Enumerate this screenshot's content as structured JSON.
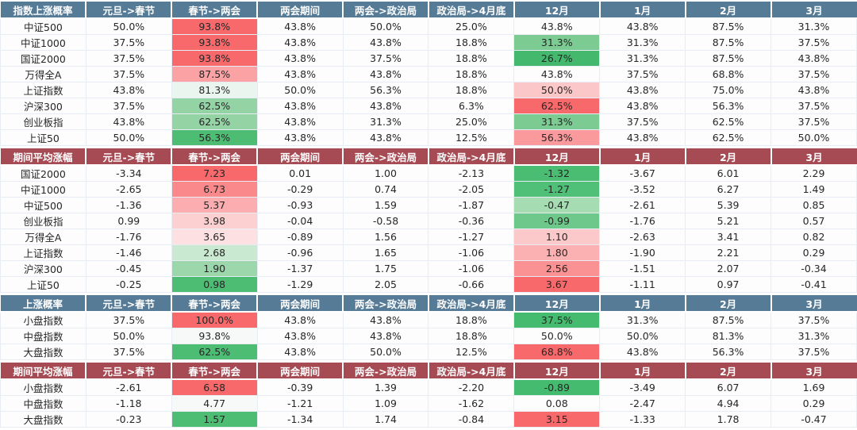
{
  "colors": {
    "header_blue": "#567b97",
    "header_red": "#a64a53",
    "cell_border": "#e7edf2",
    "text": "#262626",
    "red_full": "#f8696b",
    "green_full": "#4dbd74"
  },
  "sections": [
    {
      "title": "指数上涨概率",
      "theme": "blue",
      "columns": [
        "元旦->春节",
        "春节->两会",
        "两会期间",
        "两会->政治局",
        "政治局->4月底",
        "12月",
        "1月",
        "2月",
        "3月"
      ],
      "rows": [
        {
          "label": "中证500",
          "values": [
            "50.0%",
            "93.8%",
            "43.8%",
            "50.0%",
            "25.0%",
            "43.8%",
            "43.8%",
            "87.5%",
            "31.3%"
          ],
          "bg": [
            "",
            "#f8696b",
            "",
            "",
            "",
            "",
            "",
            "",
            ""
          ]
        },
        {
          "label": "中证1000",
          "values": [
            "37.5%",
            "93.8%",
            "43.8%",
            "43.8%",
            "18.8%",
            "31.3%",
            "31.3%",
            "87.5%",
            "37.5%"
          ],
          "bg": [
            "",
            "#f8696b",
            "",
            "",
            "",
            "#7ccb93",
            "",
            "",
            ""
          ]
        },
        {
          "label": "国证2000",
          "values": [
            "37.5%",
            "93.8%",
            "43.8%",
            "37.5%",
            "18.8%",
            "26.7%",
            "31.3%",
            "87.5%",
            "43.8%"
          ],
          "bg": [
            "",
            "#f8696b",
            "",
            "",
            "",
            "#44b96e",
            "",
            "",
            ""
          ]
        },
        {
          "label": "万得全A",
          "values": [
            "37.5%",
            "87.5%",
            "43.8%",
            "43.8%",
            "18.8%",
            "43.8%",
            "37.5%",
            "68.8%",
            "37.5%"
          ],
          "bg": [
            "",
            "#faa2a4",
            "",
            "",
            "",
            "",
            "",
            "",
            ""
          ]
        },
        {
          "label": "上证指数",
          "values": [
            "43.8%",
            "81.3%",
            "50.0%",
            "56.3%",
            "18.8%",
            "50.0%",
            "43.8%",
            "75.0%",
            "43.8%"
          ],
          "bg": [
            "",
            "#e9f5ee",
            "",
            "",
            "",
            "#fbc7c8",
            "",
            "",
            ""
          ]
        },
        {
          "label": "沪深300",
          "values": [
            "37.5%",
            "62.5%",
            "43.8%",
            "43.8%",
            "6.3%",
            "62.5%",
            "43.8%",
            "56.3%",
            "37.5%"
          ],
          "bg": [
            "",
            "#93d3a4",
            "",
            "",
            "",
            "#f8696b",
            "",
            "",
            ""
          ]
        },
        {
          "label": "创业板指",
          "values": [
            "43.8%",
            "62.5%",
            "43.8%",
            "31.3%",
            "25.0%",
            "31.3%",
            "37.5%",
            "62.5%",
            "37.5%"
          ],
          "bg": [
            "",
            "#93d3a4",
            "",
            "",
            "",
            "#7ccb93",
            "",
            "",
            ""
          ]
        },
        {
          "label": "上证50",
          "values": [
            "50.0%",
            "56.3%",
            "43.8%",
            "43.8%",
            "12.5%",
            "56.3%",
            "43.8%",
            "62.5%",
            "50.0%"
          ],
          "bg": [
            "",
            "#4dbd74",
            "",
            "",
            "",
            "#fa9a9d",
            "",
            "",
            ""
          ]
        }
      ]
    },
    {
      "title": "期间平均涨幅",
      "theme": "red",
      "columns": [
        "元旦->春节",
        "春节->两会",
        "两会期间",
        "两会->政治局",
        "政治局->4月底",
        "12月",
        "1月",
        "2月",
        "3月"
      ],
      "rows": [
        {
          "label": "国证2000",
          "values": [
            "-3.34",
            "7.23",
            "0.01",
            "1.00",
            "-2.13",
            "-1.32",
            "-3.67",
            "6.01",
            "2.29"
          ],
          "bg": [
            "",
            "#f8696b",
            "",
            "",
            "",
            "#4abd72",
            "",
            "",
            ""
          ]
        },
        {
          "label": "中证1000",
          "values": [
            "-2.65",
            "6.73",
            "-0.29",
            "0.74",
            "-2.05",
            "-1.27",
            "-3.52",
            "6.27",
            "1.49"
          ],
          "bg": [
            "",
            "#f9898b",
            "",
            "",
            "",
            "#50bf77",
            "",
            "",
            ""
          ]
        },
        {
          "label": "中证500",
          "values": [
            "-1.36",
            "5.37",
            "-0.93",
            "1.59",
            "-1.87",
            "-0.47",
            "-2.61",
            "5.39",
            "0.85"
          ],
          "bg": [
            "",
            "#fbadaf",
            "",
            "",
            "",
            "#a5dcb2",
            "",
            "",
            ""
          ]
        },
        {
          "label": "创业板指",
          "values": [
            "0.99",
            "3.98",
            "-0.04",
            "-0.58",
            "-0.36",
            "-0.99",
            "-1.76",
            "5.21",
            "0.57"
          ],
          "bg": [
            "",
            "#fcd0d1",
            "",
            "",
            "",
            "#6ec88b",
            "",
            "",
            ""
          ]
        },
        {
          "label": "万得全A",
          "values": [
            "-1.76",
            "3.65",
            "-0.89",
            "1.56",
            "-1.27",
            "1.10",
            "-2.63",
            "3.41",
            "0.82"
          ],
          "bg": [
            "",
            "#fde0e1",
            "",
            "",
            "",
            "#fcc9ca",
            "",
            "",
            ""
          ]
        },
        {
          "label": "上证指数",
          "values": [
            "-1.46",
            "2.68",
            "-0.96",
            "1.65",
            "-1.06",
            "1.80",
            "-1.90",
            "2.21",
            "0.29"
          ],
          "bg": [
            "",
            "#c9e9d1",
            "",
            "",
            "",
            "#fbb0b1",
            "",
            "",
            ""
          ]
        },
        {
          "label": "沪深300",
          "values": [
            "-0.45",
            "1.90",
            "-1.37",
            "1.75",
            "-1.06",
            "2.56",
            "-1.51",
            "2.07",
            "-0.34"
          ],
          "bg": [
            "",
            "#9cd7ab",
            "",
            "",
            "",
            "#fa9193",
            "",
            "",
            ""
          ]
        },
        {
          "label": "上证50",
          "values": [
            "-0.25",
            "0.98",
            "-1.29",
            "2.05",
            "-0.66",
            "3.67",
            "-1.11",
            "0.97",
            "-0.41"
          ],
          "bg": [
            "",
            "#4dbd74",
            "",
            "",
            "",
            "#f8696b",
            "",
            "",
            ""
          ]
        }
      ]
    },
    {
      "title": "上涨概率",
      "theme": "blue",
      "columns": [
        "元旦->春节",
        "春节->两会",
        "两会期间",
        "两会->政治局",
        "政治局->4月底",
        "12月",
        "1月",
        "2月",
        "3月"
      ],
      "rows": [
        {
          "label": "小盘指数",
          "values": [
            "37.5%",
            "100.0%",
            "43.8%",
            "43.8%",
            "18.8%",
            "37.5%",
            "31.3%",
            "87.5%",
            "37.5%"
          ],
          "bg": [
            "",
            "#f8696b",
            "",
            "",
            "",
            "#44bb6e",
            "",
            "",
            ""
          ]
        },
        {
          "label": "中盘指数",
          "values": [
            "50.0%",
            "93.8%",
            "43.8%",
            "43.8%",
            "18.8%",
            "50.0%",
            "50.0%",
            "81.3%",
            "31.3%"
          ],
          "bg": [
            "",
            "#f7f9f8",
            "",
            "",
            "",
            "",
            "",
            "",
            ""
          ]
        },
        {
          "label": "大盘指数",
          "values": [
            "37.5%",
            "62.5%",
            "43.8%",
            "50.0%",
            "12.5%",
            "68.8%",
            "43.8%",
            "56.3%",
            "37.5%"
          ],
          "bg": [
            "",
            "#4dbd74",
            "",
            "",
            "",
            "#f8696b",
            "",
            "",
            ""
          ]
        }
      ]
    },
    {
      "title": "期间平均涨幅",
      "theme": "red",
      "columns": [
        "元旦->春节",
        "春节->两会",
        "两会期间",
        "两会->政治局",
        "政治局->4月底",
        "12月",
        "1月",
        "2月",
        "3月"
      ],
      "rows": [
        {
          "label": "小盘指数",
          "values": [
            "-2.61",
            "6.58",
            "-0.39",
            "1.39",
            "-2.20",
            "-0.89",
            "-3.49",
            "6.07",
            "1.69"
          ],
          "bg": [
            "",
            "#f8696b",
            "",
            "",
            "",
            "#44bb6e",
            "",
            "",
            ""
          ]
        },
        {
          "label": "中盘指数",
          "values": [
            "-1.18",
            "4.77",
            "-1.21",
            "1.09",
            "-1.62",
            "0.08",
            "-2.47",
            "4.94",
            "0.29"
          ],
          "bg": [
            "",
            "#f7f9f8",
            "",
            "",
            "",
            "",
            "",
            "",
            ""
          ]
        },
        {
          "label": "大盘指数",
          "values": [
            "-0.23",
            "1.57",
            "-1.34",
            "1.74",
            "-0.84",
            "3.15",
            "-1.33",
            "1.78",
            "-0.47"
          ],
          "bg": [
            "",
            "#4dbd74",
            "",
            "",
            "",
            "#f8696b",
            "",
            "",
            ""
          ]
        }
      ]
    }
  ]
}
